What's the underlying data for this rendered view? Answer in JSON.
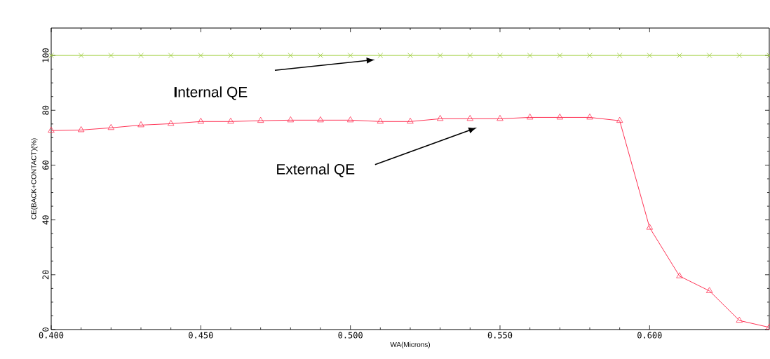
{
  "chart_data": {
    "type": "line",
    "xlabel": "WA(Microns)",
    "ylabel": "CE(BACK+CONTACT)(%)",
    "xlim": [
      0.4,
      0.64
    ],
    "ylim": [
      0,
      110
    ],
    "xticks": [
      {
        "value": 0.4,
        "label": "0.400"
      },
      {
        "value": 0.45,
        "label": "0.450"
      },
      {
        "value": 0.5,
        "label": "0.500"
      },
      {
        "value": 0.55,
        "label": "0.550"
      },
      {
        "value": 0.6,
        "label": "0.600"
      }
    ],
    "yticks": [
      0,
      20,
      40,
      60,
      80,
      100
    ],
    "x": [
      0.4,
      0.41,
      0.42,
      0.43,
      0.44,
      0.45,
      0.46,
      0.47,
      0.48,
      0.49,
      0.5,
      0.51,
      0.52,
      0.53,
      0.54,
      0.55,
      0.56,
      0.57,
      0.58,
      0.59,
      0.6,
      0.61,
      0.62,
      0.63,
      0.64
    ],
    "series": [
      {
        "color": "#99cc33",
        "marker": "cross",
        "values": [
          100,
          100,
          100,
          100,
          100,
          100,
          100,
          100,
          100,
          100,
          100,
          100,
          100,
          100,
          100,
          100,
          100,
          100,
          100,
          100,
          100,
          100,
          100,
          100,
          100
        ]
      },
      {
        "color": "#ff3355",
        "marker": "triangle",
        "values": [
          72.6,
          72.8,
          73.6,
          74.6,
          75.1,
          75.9,
          75.9,
          76.2,
          76.4,
          76.4,
          76.4,
          75.9,
          75.9,
          76.9,
          76.9,
          76.9,
          77.4,
          77.4,
          77.4,
          76.2,
          37.2,
          19.5,
          14.1,
          3.3,
          0.8
        ]
      }
    ],
    "annotations": [
      "**I**nternal QE",
      "External QE"
    ],
    "grid": false,
    "line_style": "solid"
  }
}
